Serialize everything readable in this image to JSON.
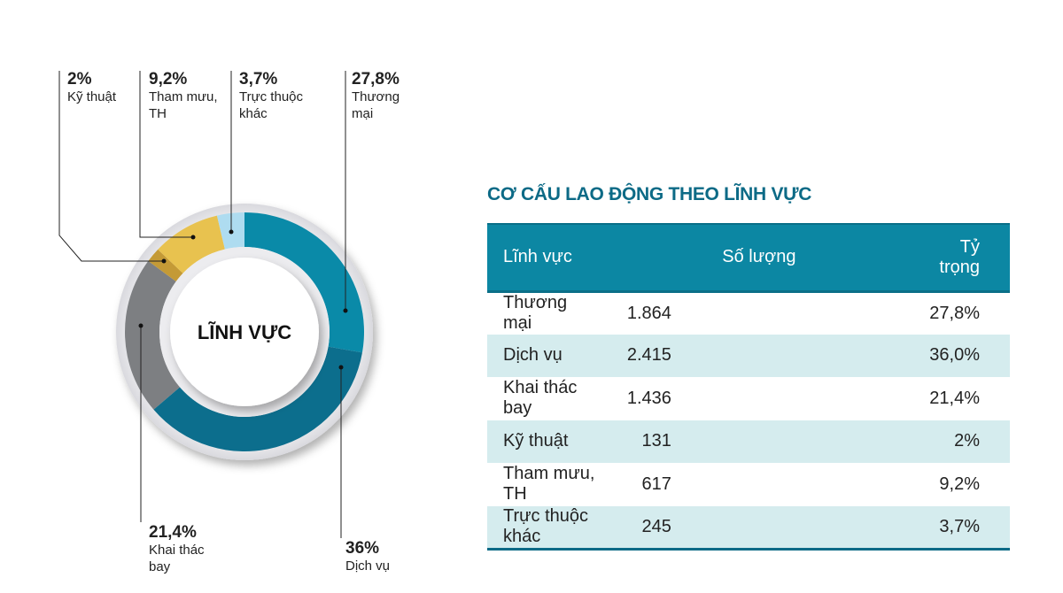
{
  "chart_data": {
    "type": "pie",
    "variant": "donut",
    "center_label": "LĨNH VỰC",
    "slices": [
      {
        "label": "Thương mại",
        "label_lines": [
          "Thương",
          "mại"
        ],
        "value": 27.8,
        "value_label": "27,8%",
        "color": "#0a8aa8"
      },
      {
        "label": "Dịch vụ",
        "label_lines": [
          "Dịch vụ"
        ],
        "value": 36,
        "value_label": "36%",
        "color": "#0c6e8d"
      },
      {
        "label": "Khai thác bay",
        "label_lines": [
          "Khai thác",
          "bay"
        ],
        "value": 21.4,
        "value_label": "21,4%",
        "color": "#7d7f82"
      },
      {
        "label": "Kỹ thuật",
        "label_lines": [
          "Kỹ thuật"
        ],
        "value": 2,
        "value_label": "2%",
        "color": "#c49a36"
      },
      {
        "label": "Tham mưu, TH",
        "label_lines": [
          "Tham mưu,",
          "TH"
        ],
        "value": 9.2,
        "value_label": "9,2%",
        "color": "#e8c24f"
      },
      {
        "label": "Trực thuộc khác",
        "label_lines": [
          "Trực thuộc",
          "khác"
        ],
        "value": 3.7,
        "value_label": "3,7%",
        "color": "#aedcf0"
      }
    ]
  },
  "table": {
    "title": "CƠ CẤU LAO ĐỘNG THEO LĨNH VỰC",
    "headers": [
      "Lĩnh vực",
      "Số lượng",
      "Tỷ trọng"
    ],
    "rows": [
      [
        "Thương mại",
        "1.864",
        "27,8%"
      ],
      [
        "Dịch vụ",
        "2.415",
        "36,0%"
      ],
      [
        "Khai thác bay",
        "1.436",
        "21,4%"
      ],
      [
        "Kỹ thuật",
        "131",
        "2%"
      ],
      [
        "Tham mưu, TH",
        "617",
        "9,2%"
      ],
      [
        "Trực thuộc khác",
        "245",
        "3,7%"
      ]
    ],
    "header_color": "#0c87a3",
    "stripe_color": "#d5ecee"
  }
}
